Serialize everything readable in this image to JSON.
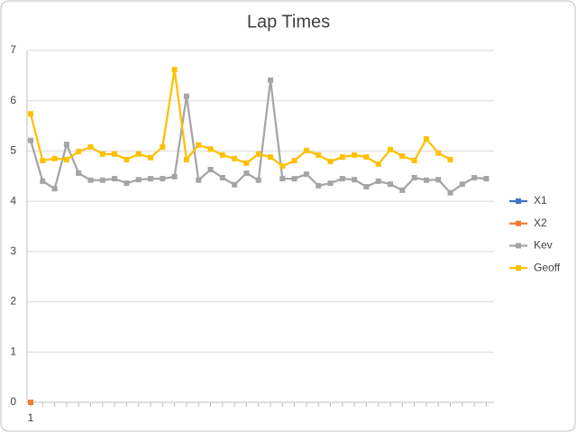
{
  "chart_data": {
    "type": "line",
    "title": "Lap Times",
    "categories": [
      "1",
      null,
      null,
      null,
      null,
      null,
      null,
      null,
      null,
      null,
      null,
      null,
      null,
      null,
      null,
      null,
      null,
      null,
      null,
      null,
      null,
      null,
      null,
      null,
      null,
      null,
      null,
      null,
      null,
      null,
      null,
      null,
      null,
      null,
      null,
      null,
      null,
      null,
      null
    ],
    "series": [
      {
        "name": "X1",
        "color": "#4472c4",
        "values": [
          0,
          null,
          null,
          null,
          null,
          null,
          null,
          null,
          null,
          null,
          null,
          null,
          null,
          null,
          null,
          null,
          null,
          null,
          null,
          null,
          null,
          null,
          null,
          null,
          null,
          null,
          null,
          null,
          null,
          null,
          null,
          null,
          null,
          null,
          null,
          null,
          null,
          null,
          null
        ]
      },
      {
        "name": "X2",
        "color": "#ed7d31",
        "values": [
          0,
          null,
          null,
          null,
          null,
          null,
          null,
          null,
          null,
          null,
          null,
          null,
          null,
          null,
          null,
          null,
          null,
          null,
          null,
          null,
          null,
          null,
          null,
          null,
          null,
          null,
          null,
          null,
          null,
          null,
          null,
          null,
          null,
          null,
          null,
          null,
          null,
          null,
          null
        ]
      },
      {
        "name": "Kev",
        "color": "#a5a5a5",
        "values": [
          5.21,
          4.4,
          4.25,
          5.13,
          4.56,
          4.42,
          4.42,
          4.45,
          4.36,
          4.43,
          4.45,
          4.45,
          4.49,
          6.09,
          4.42,
          4.63,
          4.47,
          4.33,
          4.56,
          4.42,
          6.41,
          4.45,
          4.45,
          4.54,
          4.31,
          4.36,
          4.45,
          4.43,
          4.29,
          4.4,
          4.34,
          4.22,
          4.47,
          4.42,
          4.43,
          4.17,
          4.34,
          4.47,
          4.45
        ]
      },
      {
        "name": "Geoff",
        "color": "#ffc000",
        "values": [
          5.74,
          4.81,
          4.85,
          4.83,
          4.99,
          5.08,
          4.94,
          4.94,
          4.83,
          4.94,
          4.87,
          5.08,
          6.62,
          4.83,
          5.12,
          5.04,
          4.92,
          4.85,
          4.76,
          4.94,
          4.88,
          4.7,
          4.81,
          5.01,
          4.92,
          4.79,
          4.88,
          4.92,
          4.88,
          4.74,
          5.03,
          4.9,
          4.81,
          5.24,
          4.96,
          4.83,
          null,
          null,
          null
        ]
      }
    ],
    "ylim": [
      0,
      7
    ],
    "yticks": [
      0,
      1,
      2,
      3,
      4,
      5,
      6,
      7
    ],
    "grid": true,
    "legend": "right"
  }
}
